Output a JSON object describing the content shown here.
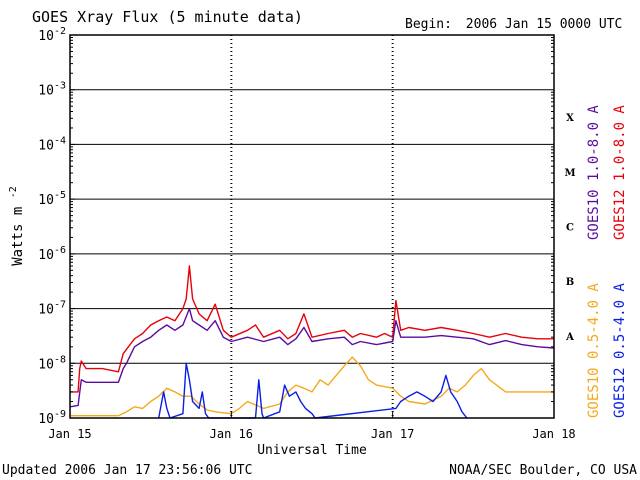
{
  "header": {
    "title": "GOES Xray Flux (5 minute data)",
    "begin_label": "Begin:",
    "begin_value": "2006 Jan 15 0000 UTC"
  },
  "footer": {
    "updated": "Updated 2006 Jan 17 23:56:06 UTC",
    "credit": "NOAA/SEC Boulder, CO USA"
  },
  "chart_data": {
    "type": "line",
    "title": "GOES Xray Flux (5 minute data)",
    "xlabel": "Universal Time",
    "ylabel": "Watts m",
    "ylabel_sup": "-2",
    "y_scale": "log",
    "ylim": [
      1e-09,
      0.01
    ],
    "xlim": [
      0,
      3
    ],
    "y_ticks": [
      {
        "base": "10",
        "exp": "-2",
        "value": 0.01
      },
      {
        "base": "10",
        "exp": "-3",
        "value": 0.001
      },
      {
        "base": "10",
        "exp": "-4",
        "value": 0.0001
      },
      {
        "base": "10",
        "exp": "-5",
        "value": 1e-05
      },
      {
        "base": "10",
        "exp": "-6",
        "value": 1e-06
      },
      {
        "base": "10",
        "exp": "-7",
        "value": 1e-07
      },
      {
        "base": "10",
        "exp": "-8",
        "value": 1e-08
      },
      {
        "base": "10",
        "exp": "-9",
        "value": 1e-09
      }
    ],
    "x_ticks": [
      {
        "label": "Jan 15",
        "value": 0
      },
      {
        "label": "Jan 16",
        "value": 1
      },
      {
        "label": "Jan 17",
        "value": 2
      },
      {
        "label": "Jan 18",
        "value": 3
      }
    ],
    "flare_classes": [
      {
        "label": "X",
        "value": 0.0001
      },
      {
        "label": "M",
        "value": 1e-05
      },
      {
        "label": "C",
        "value": 1e-06
      },
      {
        "label": "B",
        "value": 1e-07
      },
      {
        "label": "A",
        "value": 1e-08
      }
    ],
    "grid": "horizontal decade lines; dotted vertical day lines",
    "series": [
      {
        "name": "GOES12 1.0-8.0 A",
        "color": "#e8000b",
        "points": [
          [
            0.0,
            3e-09
          ],
          [
            0.05,
            3e-09
          ],
          [
            0.06,
            8e-09
          ],
          [
            0.07,
            1.1e-08
          ],
          [
            0.1,
            8e-09
          ],
          [
            0.2,
            8e-09
          ],
          [
            0.3,
            7e-09
          ],
          [
            0.33,
            1.5e-08
          ],
          [
            0.35,
            1.8e-08
          ],
          [
            0.4,
            2.8e-08
          ],
          [
            0.45,
            3.5e-08
          ],
          [
            0.5,
            5e-08
          ],
          [
            0.55,
            6e-08
          ],
          [
            0.6,
            7e-08
          ],
          [
            0.65,
            6e-08
          ],
          [
            0.7,
            1e-07
          ],
          [
            0.72,
            1.5e-07
          ],
          [
            0.74,
            6e-07
          ],
          [
            0.76,
            1.5e-07
          ],
          [
            0.8,
            8e-08
          ],
          [
            0.85,
            6e-08
          ],
          [
            0.9,
            1.2e-07
          ],
          [
            0.95,
            4e-08
          ],
          [
            1.0,
            3e-08
          ],
          [
            1.1,
            4e-08
          ],
          [
            1.15,
            5e-08
          ],
          [
            1.2,
            3e-08
          ],
          [
            1.3,
            4e-08
          ],
          [
            1.35,
            2.8e-08
          ],
          [
            1.4,
            3.5e-08
          ],
          [
            1.45,
            8e-08
          ],
          [
            1.5,
            3e-08
          ],
          [
            1.6,
            3.5e-08
          ],
          [
            1.7,
            4e-08
          ],
          [
            1.75,
            3e-08
          ],
          [
            1.8,
            3.5e-08
          ],
          [
            1.9,
            3e-08
          ],
          [
            1.95,
            3.5e-08
          ],
          [
            2.0,
            3e-08
          ],
          [
            2.02,
            1.4e-07
          ],
          [
            2.05,
            4e-08
          ],
          [
            2.1,
            4.5e-08
          ],
          [
            2.2,
            4e-08
          ],
          [
            2.3,
            4.5e-08
          ],
          [
            2.4,
            4e-08
          ],
          [
            2.5,
            3.5e-08
          ],
          [
            2.6,
            3e-08
          ],
          [
            2.7,
            3.5e-08
          ],
          [
            2.8,
            3e-08
          ],
          [
            2.9,
            2.8e-08
          ],
          [
            3.0,
            2.8e-08
          ]
        ]
      },
      {
        "name": "GOES10 1.0-8.0 A",
        "color": "#5a0da0",
        "points": [
          [
            0.0,
            1.6e-09
          ],
          [
            0.05,
            1.7e-09
          ],
          [
            0.07,
            5e-09
          ],
          [
            0.1,
            4.5e-09
          ],
          [
            0.2,
            4.5e-09
          ],
          [
            0.3,
            4.5e-09
          ],
          [
            0.33,
            8e-09
          ],
          [
            0.35,
            1e-08
          ],
          [
            0.4,
            2e-08
          ],
          [
            0.45,
            2.5e-08
          ],
          [
            0.5,
            3e-08
          ],
          [
            0.55,
            4e-08
          ],
          [
            0.6,
            5e-08
          ],
          [
            0.65,
            4e-08
          ],
          [
            0.7,
            5e-08
          ],
          [
            0.74,
            1e-07
          ],
          [
            0.76,
            6e-08
          ],
          [
            0.8,
            5e-08
          ],
          [
            0.85,
            4e-08
          ],
          [
            0.9,
            6e-08
          ],
          [
            0.95,
            3e-08
          ],
          [
            1.0,
            2.5e-08
          ],
          [
            1.1,
            3e-08
          ],
          [
            1.2,
            2.5e-08
          ],
          [
            1.3,
            3e-08
          ],
          [
            1.35,
            2.2e-08
          ],
          [
            1.4,
            2.8e-08
          ],
          [
            1.45,
            4.5e-08
          ],
          [
            1.5,
            2.5e-08
          ],
          [
            1.6,
            2.8e-08
          ],
          [
            1.7,
            3e-08
          ],
          [
            1.75,
            2.2e-08
          ],
          [
            1.8,
            2.5e-08
          ],
          [
            1.9,
            2.2e-08
          ],
          [
            2.0,
            2.5e-08
          ],
          [
            2.02,
            6e-08
          ],
          [
            2.05,
            3e-08
          ],
          [
            2.1,
            3e-08
          ],
          [
            2.2,
            3e-08
          ],
          [
            2.3,
            3.2e-08
          ],
          [
            2.4,
            3e-08
          ],
          [
            2.5,
            2.8e-08
          ],
          [
            2.6,
            2.2e-08
          ],
          [
            2.7,
            2.6e-08
          ],
          [
            2.8,
            2.2e-08
          ],
          [
            2.9,
            2e-08
          ],
          [
            3.0,
            1.9e-08
          ]
        ]
      },
      {
        "name": "GOES10 0.5-4.0 A",
        "color": "#f5a81c",
        "points": [
          [
            0.0,
            1.1e-09
          ],
          [
            0.1,
            1.1e-09
          ],
          [
            0.2,
            1.1e-09
          ],
          [
            0.3,
            1.1e-09
          ],
          [
            0.35,
            1.3e-09
          ],
          [
            0.4,
            1.6e-09
          ],
          [
            0.45,
            1.5e-09
          ],
          [
            0.5,
            2e-09
          ],
          [
            0.55,
            2.5e-09
          ],
          [
            0.6,
            3.5e-09
          ],
          [
            0.65,
            3e-09
          ],
          [
            0.7,
            2.5e-09
          ],
          [
            0.75,
            2.5e-09
          ],
          [
            0.8,
            1.8e-09
          ],
          [
            0.85,
            1.4e-09
          ],
          [
            0.9,
            1.3e-09
          ],
          [
            1.0,
            1.2e-09
          ],
          [
            1.05,
            1.5e-09
          ],
          [
            1.1,
            2e-09
          ],
          [
            1.2,
            1.5e-09
          ],
          [
            1.3,
            1.8e-09
          ],
          [
            1.35,
            3e-09
          ],
          [
            1.4,
            4e-09
          ],
          [
            1.45,
            3.5e-09
          ],
          [
            1.5,
            3e-09
          ],
          [
            1.55,
            5e-09
          ],
          [
            1.6,
            4e-09
          ],
          [
            1.65,
            6e-09
          ],
          [
            1.7,
            9e-09
          ],
          [
            1.75,
            1.3e-08
          ],
          [
            1.8,
            9e-09
          ],
          [
            1.85,
            5e-09
          ],
          [
            1.9,
            4e-09
          ],
          [
            2.0,
            3.5e-09
          ],
          [
            2.05,
            2.5e-09
          ],
          [
            2.1,
            2e-09
          ],
          [
            2.2,
            1.8e-09
          ],
          [
            2.3,
            2.5e-09
          ],
          [
            2.35,
            3.5e-09
          ],
          [
            2.4,
            3e-09
          ],
          [
            2.45,
            4e-09
          ],
          [
            2.5,
            6e-09
          ],
          [
            2.55,
            8e-09
          ],
          [
            2.6,
            5e-09
          ],
          [
            2.7,
            3e-09
          ],
          [
            2.8,
            3e-09
          ],
          [
            2.9,
            3e-09
          ],
          [
            3.0,
            3e-09
          ]
        ]
      },
      {
        "name": "GOES12 0.5-4.0 A",
        "color": "#0a1ee6",
        "points": [
          [
            0.55,
            1e-09
          ],
          [
            0.58,
            3e-09
          ],
          [
            0.6,
            1.5e-09
          ],
          [
            0.62,
            1e-09
          ],
          [
            0.7,
            1.2e-09
          ],
          [
            0.72,
            1e-08
          ],
          [
            0.74,
            5e-09
          ],
          [
            0.76,
            2e-09
          ],
          [
            0.8,
            1.5e-09
          ],
          [
            0.82,
            3e-09
          ],
          [
            0.84,
            1.2e-09
          ],
          [
            0.86,
            1e-09
          ],
          [
            1.15,
            1e-09
          ],
          [
            1.17,
            5e-09
          ],
          [
            1.19,
            1.2e-09
          ],
          [
            1.2,
            1e-09
          ],
          [
            1.3,
            1.3e-09
          ],
          [
            1.33,
            4e-09
          ],
          [
            1.36,
            2.5e-09
          ],
          [
            1.4,
            3e-09
          ],
          [
            1.43,
            2e-09
          ],
          [
            1.46,
            1.5e-09
          ],
          [
            1.5,
            1.2e-09
          ],
          [
            1.52,
            1e-09
          ],
          [
            2.02,
            1.5e-09
          ],
          [
            2.05,
            2e-09
          ],
          [
            2.1,
            2.5e-09
          ],
          [
            2.15,
            3e-09
          ],
          [
            2.2,
            2.5e-09
          ],
          [
            2.25,
            2e-09
          ],
          [
            2.3,
            3e-09
          ],
          [
            2.33,
            6e-09
          ],
          [
            2.36,
            3e-09
          ],
          [
            2.4,
            2e-09
          ],
          [
            2.43,
            1.3e-09
          ],
          [
            2.46,
            1e-09
          ]
        ]
      }
    ]
  },
  "legend_right": {
    "upper": [
      {
        "name": "GOES10 1.0-8.0 A",
        "color": "#5a0da0"
      },
      {
        "name": "GOES12 1.0-8.0 A",
        "color": "#e8000b"
      }
    ],
    "lower": [
      {
        "name": "GOES10 0.5-4.0 A",
        "color": "#f5a81c"
      },
      {
        "name": "GOES12 0.5-4.0 A",
        "color": "#0a1ee6"
      }
    ]
  }
}
